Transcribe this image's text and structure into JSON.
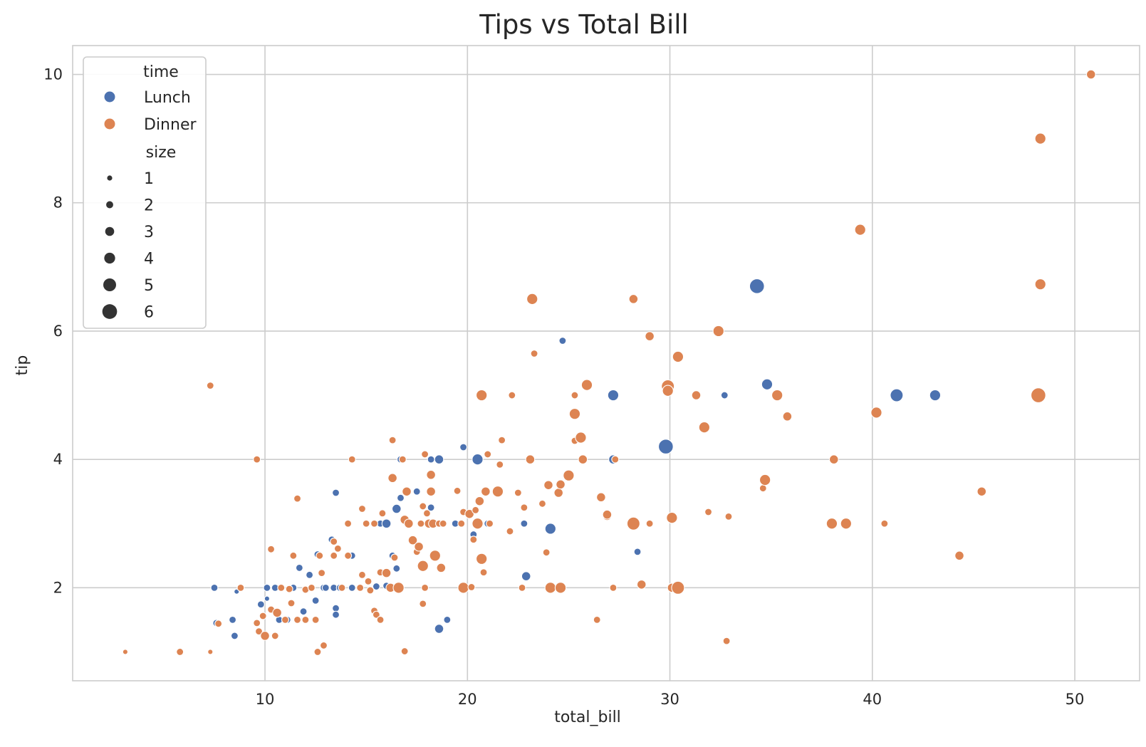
{
  "chart_data": {
    "type": "scatter",
    "title": "Tips vs Total Bill",
    "xlabel": "total_bill",
    "ylabel": "tip",
    "xlim": [
      0.5,
      53.2
    ],
    "ylim": [
      0.55,
      10.45
    ],
    "xticks": [
      10,
      20,
      30,
      40,
      50
    ],
    "yticks": [
      2,
      4,
      6,
      8,
      10
    ],
    "grid": true,
    "legend": {
      "placement": "upper-left",
      "hue_title": "time",
      "size_title": "size",
      "hue_entries": [
        {
          "label": "Lunch",
          "color": "#4c72b0"
        },
        {
          "label": "Dinner",
          "color": "#dd8452"
        }
      ],
      "size_entries": [
        "1",
        "2",
        "3",
        "4",
        "5",
        "6"
      ]
    },
    "series": [
      {
        "name": "Lunch",
        "color": "#4c72b0",
        "points": [
          [
            7.5,
            2.0,
            2
          ],
          [
            7.6,
            1.45,
            2
          ],
          [
            8.4,
            1.5,
            2
          ],
          [
            8.5,
            1.25,
            2
          ],
          [
            8.6,
            1.94,
            1
          ],
          [
            9.8,
            1.74,
            2
          ],
          [
            10.1,
            2.0,
            2
          ],
          [
            10.1,
            1.83,
            1
          ],
          [
            10.5,
            2.0,
            2
          ],
          [
            10.7,
            1.5,
            2
          ],
          [
            11.1,
            1.5,
            2
          ],
          [
            11.4,
            2.0,
            2
          ],
          [
            11.7,
            2.31,
            2
          ],
          [
            11.9,
            1.63,
            2
          ],
          [
            12.2,
            2.2,
            2
          ],
          [
            12.3,
            2.0,
            2
          ],
          [
            12.5,
            1.8,
            2
          ],
          [
            12.6,
            2.52,
            2
          ],
          [
            12.9,
            2.0,
            2
          ],
          [
            13.0,
            2.0,
            2
          ],
          [
            13.3,
            2.75,
            2
          ],
          [
            13.4,
            2.0,
            2
          ],
          [
            13.5,
            1.68,
            2
          ],
          [
            13.5,
            1.58,
            2
          ],
          [
            13.5,
            3.48,
            2
          ],
          [
            13.7,
            2.0,
            2
          ],
          [
            14.3,
            2.0,
            2
          ],
          [
            14.3,
            2.5,
            2
          ],
          [
            15.5,
            2.02,
            2
          ],
          [
            15.7,
            3.0,
            2
          ],
          [
            16.0,
            2.03,
            2
          ],
          [
            16.0,
            3.0,
            3
          ],
          [
            16.3,
            2.5,
            2
          ],
          [
            16.5,
            2.3,
            2
          ],
          [
            16.5,
            3.23,
            3
          ],
          [
            16.7,
            4.0,
            2
          ],
          [
            16.7,
            3.4,
            2
          ],
          [
            17.5,
            3.5,
            2
          ],
          [
            18.2,
            3.25,
            2
          ],
          [
            18.2,
            4.0,
            2
          ],
          [
            18.6,
            1.36,
            3
          ],
          [
            18.6,
            4.0,
            3
          ],
          [
            19.0,
            1.5,
            2
          ],
          [
            19.4,
            3.0,
            2
          ],
          [
            19.8,
            4.19,
            2
          ],
          [
            20.3,
            2.83,
            2
          ],
          [
            20.5,
            4.0,
            4
          ],
          [
            21.0,
            3.0,
            2
          ],
          [
            22.8,
            3.0,
            2
          ],
          [
            22.9,
            2.18,
            3
          ],
          [
            24.1,
            2.92,
            4
          ],
          [
            24.7,
            5.85,
            2
          ],
          [
            27.2,
            4.0,
            3
          ],
          [
            27.2,
            5.0,
            4
          ],
          [
            28.4,
            2.56,
            2
          ],
          [
            29.8,
            4.2,
            6
          ],
          [
            32.7,
            5.0,
            2
          ],
          [
            34.3,
            6.7,
            6
          ],
          [
            34.8,
            5.17,
            4
          ],
          [
            41.2,
            5.0,
            5
          ],
          [
            43.1,
            5.0,
            4
          ]
        ]
      },
      {
        "name": "Dinner",
        "color": "#dd8452",
        "points": [
          [
            3.1,
            1.0,
            1
          ],
          [
            5.8,
            1.0,
            2
          ],
          [
            7.3,
            1.0,
            1
          ],
          [
            7.3,
            5.15,
            2
          ],
          [
            7.7,
            1.44,
            2
          ],
          [
            8.8,
            2.0,
            2
          ],
          [
            9.6,
            4.0,
            2
          ],
          [
            9.6,
            1.45,
            2
          ],
          [
            9.7,
            1.32,
            2
          ],
          [
            9.9,
            1.56,
            2
          ],
          [
            10.0,
            1.25,
            3
          ],
          [
            10.3,
            1.66,
            2
          ],
          [
            10.3,
            2.6,
            2
          ],
          [
            10.5,
            1.25,
            2
          ],
          [
            10.6,
            1.61,
            3
          ],
          [
            10.8,
            2.0,
            2
          ],
          [
            11.0,
            1.5,
            2
          ],
          [
            11.2,
            1.98,
            2
          ],
          [
            11.3,
            1.76,
            2
          ],
          [
            11.4,
            2.5,
            2
          ],
          [
            11.6,
            3.39,
            2
          ],
          [
            11.6,
            1.5,
            2
          ],
          [
            12.0,
            1.5,
            2
          ],
          [
            12.0,
            1.97,
            2
          ],
          [
            12.3,
            2.0,
            2
          ],
          [
            12.5,
            1.5,
            2
          ],
          [
            12.6,
            1.0,
            2
          ],
          [
            12.7,
            2.5,
            2
          ],
          [
            12.8,
            2.23,
            2
          ],
          [
            12.9,
            1.1,
            2
          ],
          [
            13.4,
            2.5,
            2
          ],
          [
            13.4,
            2.72,
            2
          ],
          [
            13.6,
            2.61,
            2
          ],
          [
            13.8,
            2.0,
            2
          ],
          [
            14.1,
            3.0,
            2
          ],
          [
            14.1,
            2.5,
            2
          ],
          [
            14.3,
            4.0,
            2
          ],
          [
            14.7,
            2.0,
            2
          ],
          [
            14.8,
            2.2,
            2
          ],
          [
            14.8,
            3.23,
            2
          ],
          [
            15.0,
            3.0,
            2
          ],
          [
            15.1,
            2.1,
            2
          ],
          [
            15.2,
            1.96,
            2
          ],
          [
            15.4,
            3.0,
            2
          ],
          [
            15.4,
            1.64,
            2
          ],
          [
            15.5,
            1.58,
            2
          ],
          [
            15.7,
            1.5,
            2
          ],
          [
            15.7,
            2.24,
            2
          ],
          [
            15.8,
            3.16,
            2
          ],
          [
            16.0,
            2.23,
            3
          ],
          [
            16.2,
            2.0,
            3
          ],
          [
            16.3,
            3.71,
            3
          ],
          [
            16.3,
            4.3,
            2
          ],
          [
            16.4,
            2.47,
            2
          ],
          [
            16.6,
            2.0,
            4
          ],
          [
            16.8,
            4.0,
            2
          ],
          [
            16.9,
            1.01,
            2
          ],
          [
            16.9,
            3.06,
            3
          ],
          [
            17.0,
            3.5,
            3
          ],
          [
            17.1,
            3.0,
            3
          ],
          [
            17.3,
            2.74,
            3
          ],
          [
            17.5,
            2.56,
            2
          ],
          [
            17.6,
            2.64,
            3
          ],
          [
            17.7,
            3.0,
            2
          ],
          [
            17.8,
            1.75,
            2
          ],
          [
            17.8,
            3.27,
            2
          ],
          [
            17.8,
            2.34,
            4
          ],
          [
            17.9,
            4.08,
            2
          ],
          [
            17.9,
            2.0,
            2
          ],
          [
            18.0,
            3.16,
            2
          ],
          [
            18.1,
            3.0,
            3
          ],
          [
            18.2,
            3.5,
            3
          ],
          [
            18.2,
            3.76,
            3
          ],
          [
            18.3,
            3.0,
            3
          ],
          [
            18.4,
            2.5,
            4
          ],
          [
            18.6,
            3.0,
            2
          ],
          [
            18.7,
            2.31,
            3
          ],
          [
            18.8,
            3.0,
            2
          ],
          [
            19.5,
            3.51,
            2
          ],
          [
            19.7,
            3.0,
            2
          ],
          [
            19.8,
            2.0,
            4
          ],
          [
            19.8,
            3.18,
            2
          ],
          [
            20.1,
            3.15,
            3
          ],
          [
            20.2,
            2.01,
            2
          ],
          [
            20.3,
            2.75,
            2
          ],
          [
            20.4,
            3.21,
            2
          ],
          [
            20.5,
            3.0,
            4
          ],
          [
            20.6,
            3.35,
            3
          ],
          [
            20.7,
            2.45,
            4
          ],
          [
            20.7,
            5.0,
            4
          ],
          [
            20.8,
            2.24,
            2
          ],
          [
            20.9,
            3.5,
            3
          ],
          [
            21.0,
            4.08,
            2
          ],
          [
            21.1,
            3.0,
            2
          ],
          [
            21.5,
            3.5,
            4
          ],
          [
            21.6,
            3.92,
            2
          ],
          [
            21.7,
            4.3,
            2
          ],
          [
            22.1,
            2.88,
            2
          ],
          [
            22.2,
            5.0,
            2
          ],
          [
            22.5,
            3.48,
            2
          ],
          [
            22.7,
            2.0,
            2
          ],
          [
            22.8,
            3.25,
            2
          ],
          [
            23.1,
            4.0,
            3
          ],
          [
            23.2,
            6.5,
            4
          ],
          [
            23.3,
            5.65,
            2
          ],
          [
            23.7,
            3.31,
            2
          ],
          [
            23.9,
            2.55,
            2
          ],
          [
            24.0,
            3.6,
            3
          ],
          [
            24.1,
            2.0,
            4
          ],
          [
            24.5,
            3.48,
            3
          ],
          [
            24.6,
            3.61,
            3
          ],
          [
            24.6,
            2.0,
            4
          ],
          [
            25.0,
            3.75,
            4
          ],
          [
            25.3,
            4.29,
            2
          ],
          [
            25.3,
            5.0,
            2
          ],
          [
            25.3,
            4.71,
            4
          ],
          [
            25.6,
            4.34,
            4
          ],
          [
            25.7,
            4.0,
            3
          ],
          [
            25.9,
            5.16,
            4
          ],
          [
            26.4,
            1.5,
            2
          ],
          [
            26.6,
            3.41,
            3
          ],
          [
            26.9,
            3.12,
            3
          ],
          [
            26.9,
            3.14,
            3
          ],
          [
            27.2,
            2.0,
            2
          ],
          [
            27.3,
            4.0,
            2
          ],
          [
            28.2,
            3.0,
            5
          ],
          [
            28.2,
            6.5,
            3
          ],
          [
            28.6,
            2.05,
            3
          ],
          [
            29.0,
            3.0,
            2
          ],
          [
            29.0,
            5.92,
            3
          ],
          [
            29.9,
            5.14,
            5
          ],
          [
            29.9,
            5.07,
            4
          ],
          [
            30.1,
            3.09,
            4
          ],
          [
            30.1,
            2.0,
            3
          ],
          [
            30.4,
            2.0,
            5
          ],
          [
            30.4,
            5.6,
            4
          ],
          [
            31.3,
            5.0,
            3
          ],
          [
            31.7,
            4.5,
            4
          ],
          [
            31.9,
            3.18,
            2
          ],
          [
            32.4,
            6.0,
            4
          ],
          [
            32.8,
            1.17,
            2
          ],
          [
            32.9,
            3.11,
            2
          ],
          [
            34.6,
            3.55,
            2
          ],
          [
            34.7,
            3.68,
            4
          ],
          [
            35.3,
            5.0,
            4
          ],
          [
            35.8,
            4.67,
            3
          ],
          [
            38.0,
            3.0,
            4
          ],
          [
            38.1,
            4.0,
            3
          ],
          [
            38.7,
            3.0,
            4
          ],
          [
            39.4,
            7.58,
            4
          ],
          [
            40.2,
            4.73,
            4
          ],
          [
            40.6,
            3.0,
            2
          ],
          [
            44.3,
            2.5,
            3
          ],
          [
            45.4,
            3.5,
            3
          ],
          [
            48.2,
            5.0,
            6
          ],
          [
            48.3,
            6.73,
            4
          ],
          [
            48.3,
            9.0,
            4
          ],
          [
            50.8,
            10.0,
            3
          ]
        ]
      }
    ]
  }
}
